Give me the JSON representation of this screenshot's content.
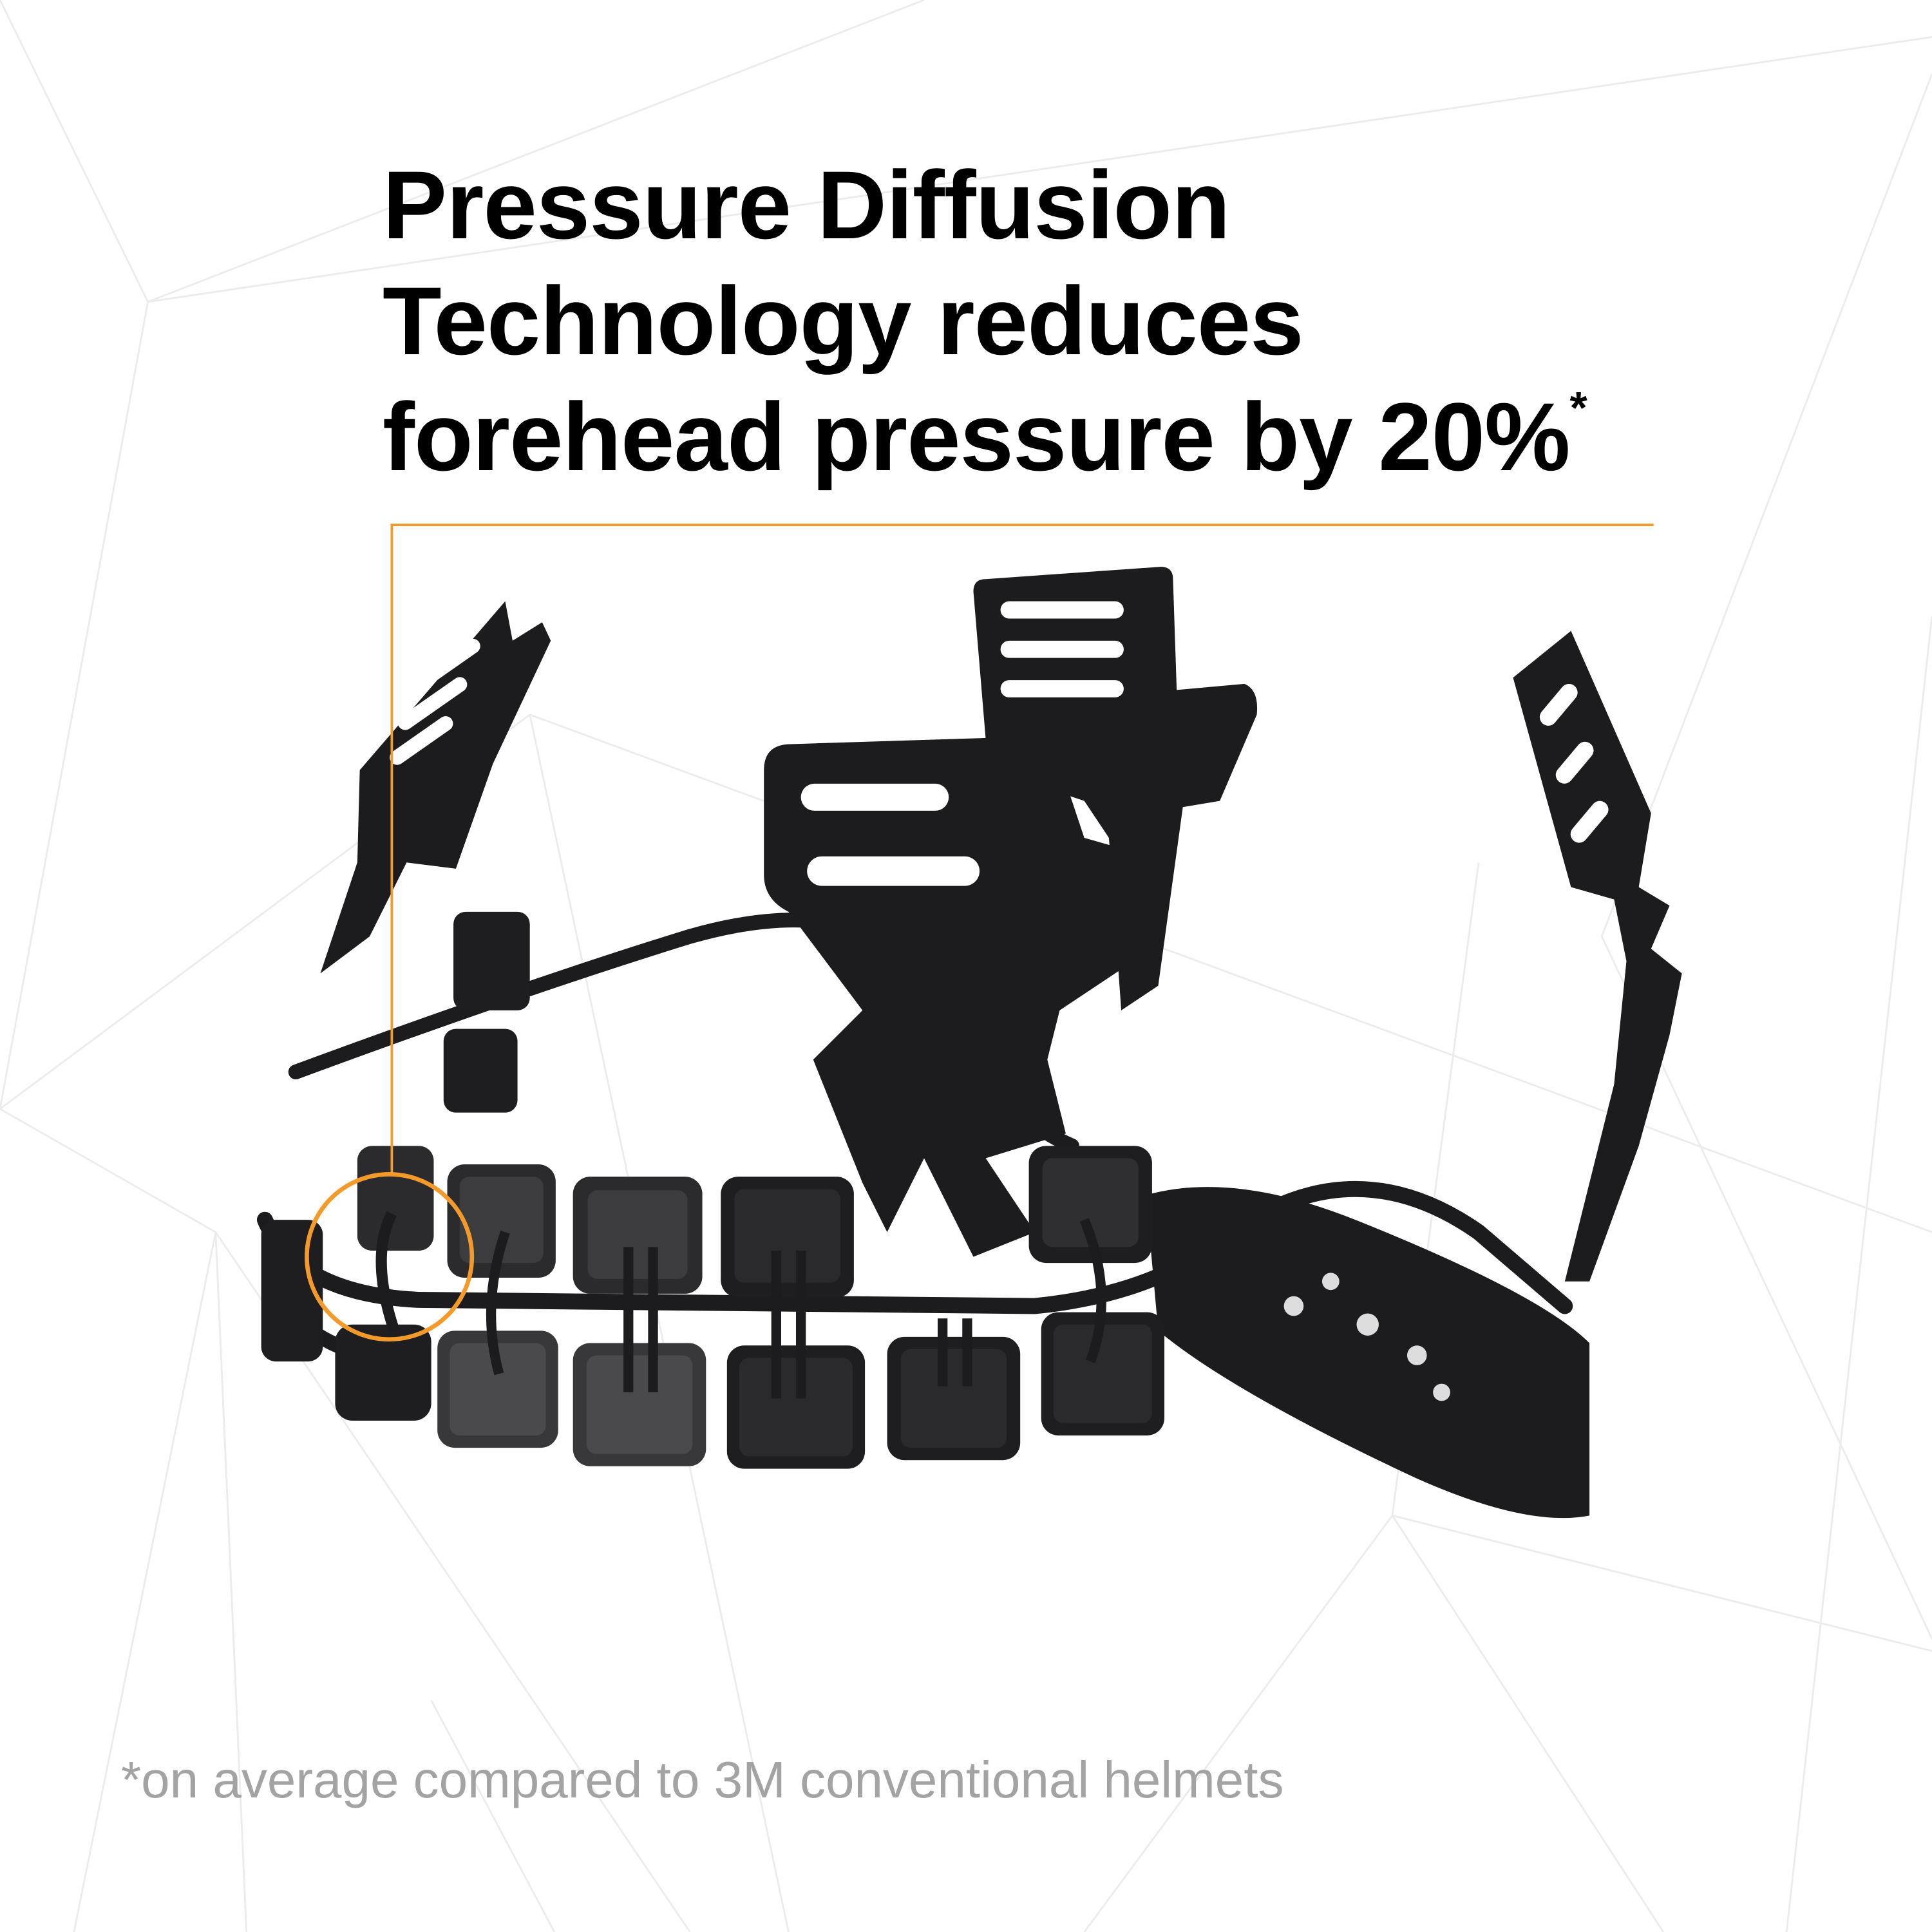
{
  "headline": {
    "line1": "Pressure Diffusion",
    "line2": "Technology reduces",
    "line3": "forehead pressure by 20%",
    "footnote_marker": "*"
  },
  "footnote": "*on average compared to 3M conventional helmets",
  "colors": {
    "accent": "#f39a2a",
    "text": "#000000",
    "footnote": "#a3a3a3",
    "product": "#1c1c1e",
    "background_lines": "#ececec"
  },
  "image": {
    "subject": "helmet-suspension-headband",
    "callout": "orange-circle-highlight"
  }
}
